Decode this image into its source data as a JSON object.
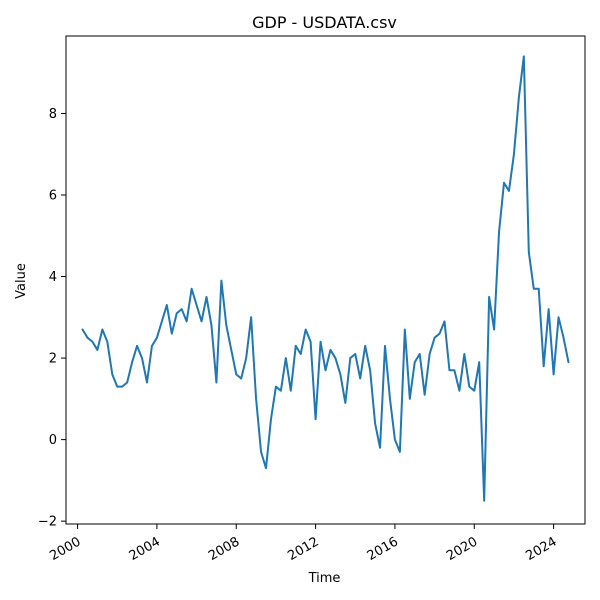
{
  "chart_data": {
    "type": "line",
    "title": "GDP - USDATA.csv",
    "xlabel": "Time",
    "ylabel": "Value",
    "x_ticks": [
      "2000",
      "2004",
      "2008",
      "2012",
      "2016",
      "2020",
      "2024"
    ],
    "y_ticks": [
      -2,
      0,
      2,
      4,
      6,
      8
    ],
    "xlim": [
      "1999-06",
      "2025-08"
    ],
    "ylim": [
      -2.07,
      9.9
    ],
    "grid": false,
    "legend": "none",
    "series": [
      {
        "color": "#1f77b4",
        "x": [
          "2000-04",
          "2000-07",
          "2000-10",
          "2001-01",
          "2001-04",
          "2001-07",
          "2001-10",
          "2002-01",
          "2002-04",
          "2002-07",
          "2002-10",
          "2003-01",
          "2003-04",
          "2003-07",
          "2003-10",
          "2004-01",
          "2004-04",
          "2004-07",
          "2004-10",
          "2005-01",
          "2005-04",
          "2005-07",
          "2005-10",
          "2006-01",
          "2006-04",
          "2006-07",
          "2006-10",
          "2007-01",
          "2007-04",
          "2007-07",
          "2007-10",
          "2008-01",
          "2008-04",
          "2008-07",
          "2008-10",
          "2009-01",
          "2009-04",
          "2009-07",
          "2009-10",
          "2010-01",
          "2010-04",
          "2010-07",
          "2010-10",
          "2011-01",
          "2011-04",
          "2011-07",
          "2011-10",
          "2012-01",
          "2012-04",
          "2012-07",
          "2012-10",
          "2013-01",
          "2013-04",
          "2013-07",
          "2013-10",
          "2014-01",
          "2014-04",
          "2014-07",
          "2014-10",
          "2015-01",
          "2015-04",
          "2015-07",
          "2015-10",
          "2016-01",
          "2016-04",
          "2016-07",
          "2016-10",
          "2017-01",
          "2017-04",
          "2017-07",
          "2017-10",
          "2018-01",
          "2018-04",
          "2018-07",
          "2018-10",
          "2019-01",
          "2019-04",
          "2019-07",
          "2019-10",
          "2020-01",
          "2020-04",
          "2020-07",
          "2020-10",
          "2021-01",
          "2021-04",
          "2021-07",
          "2021-10",
          "2022-01",
          "2022-04",
          "2022-07",
          "2022-10",
          "2023-01",
          "2023-04",
          "2023-07",
          "2023-10",
          "2024-01",
          "2024-04",
          "2024-07",
          "2024-10"
        ],
        "values": [
          2.7,
          2.5,
          2.4,
          2.2,
          2.7,
          2.4,
          1.6,
          1.3,
          1.3,
          1.4,
          1.9,
          2.3,
          2.0,
          1.4,
          2.3,
          2.5,
          2.9,
          3.3,
          2.6,
          3.1,
          3.2,
          2.9,
          3.7,
          3.3,
          2.9,
          3.5,
          2.8,
          1.4,
          3.9,
          2.8,
          2.2,
          1.6,
          1.5,
          2.0,
          3.0,
          1.0,
          -0.3,
          -0.7,
          0.5,
          1.3,
          1.2,
          2.0,
          1.2,
          2.3,
          2.1,
          2.7,
          2.4,
          0.5,
          2.4,
          1.7,
          2.2,
          2.0,
          1.6,
          0.9,
          2.0,
          2.1,
          1.5,
          2.3,
          1.7,
          0.4,
          -0.2,
          2.3,
          1.0,
          0.0,
          -0.3,
          2.7,
          1.0,
          1.9,
          2.1,
          1.1,
          2.1,
          2.5,
          2.6,
          2.9,
          1.7,
          1.7,
          1.2,
          2.1,
          1.3,
          1.2,
          1.9,
          -1.5,
          3.5,
          2.7,
          5.1,
          6.3,
          6.1,
          7.0,
          8.4,
          9.4,
          4.6,
          3.7,
          3.7,
          1.8,
          3.2,
          1.6,
          3.0,
          2.5,
          1.9
        ]
      }
    ]
  }
}
